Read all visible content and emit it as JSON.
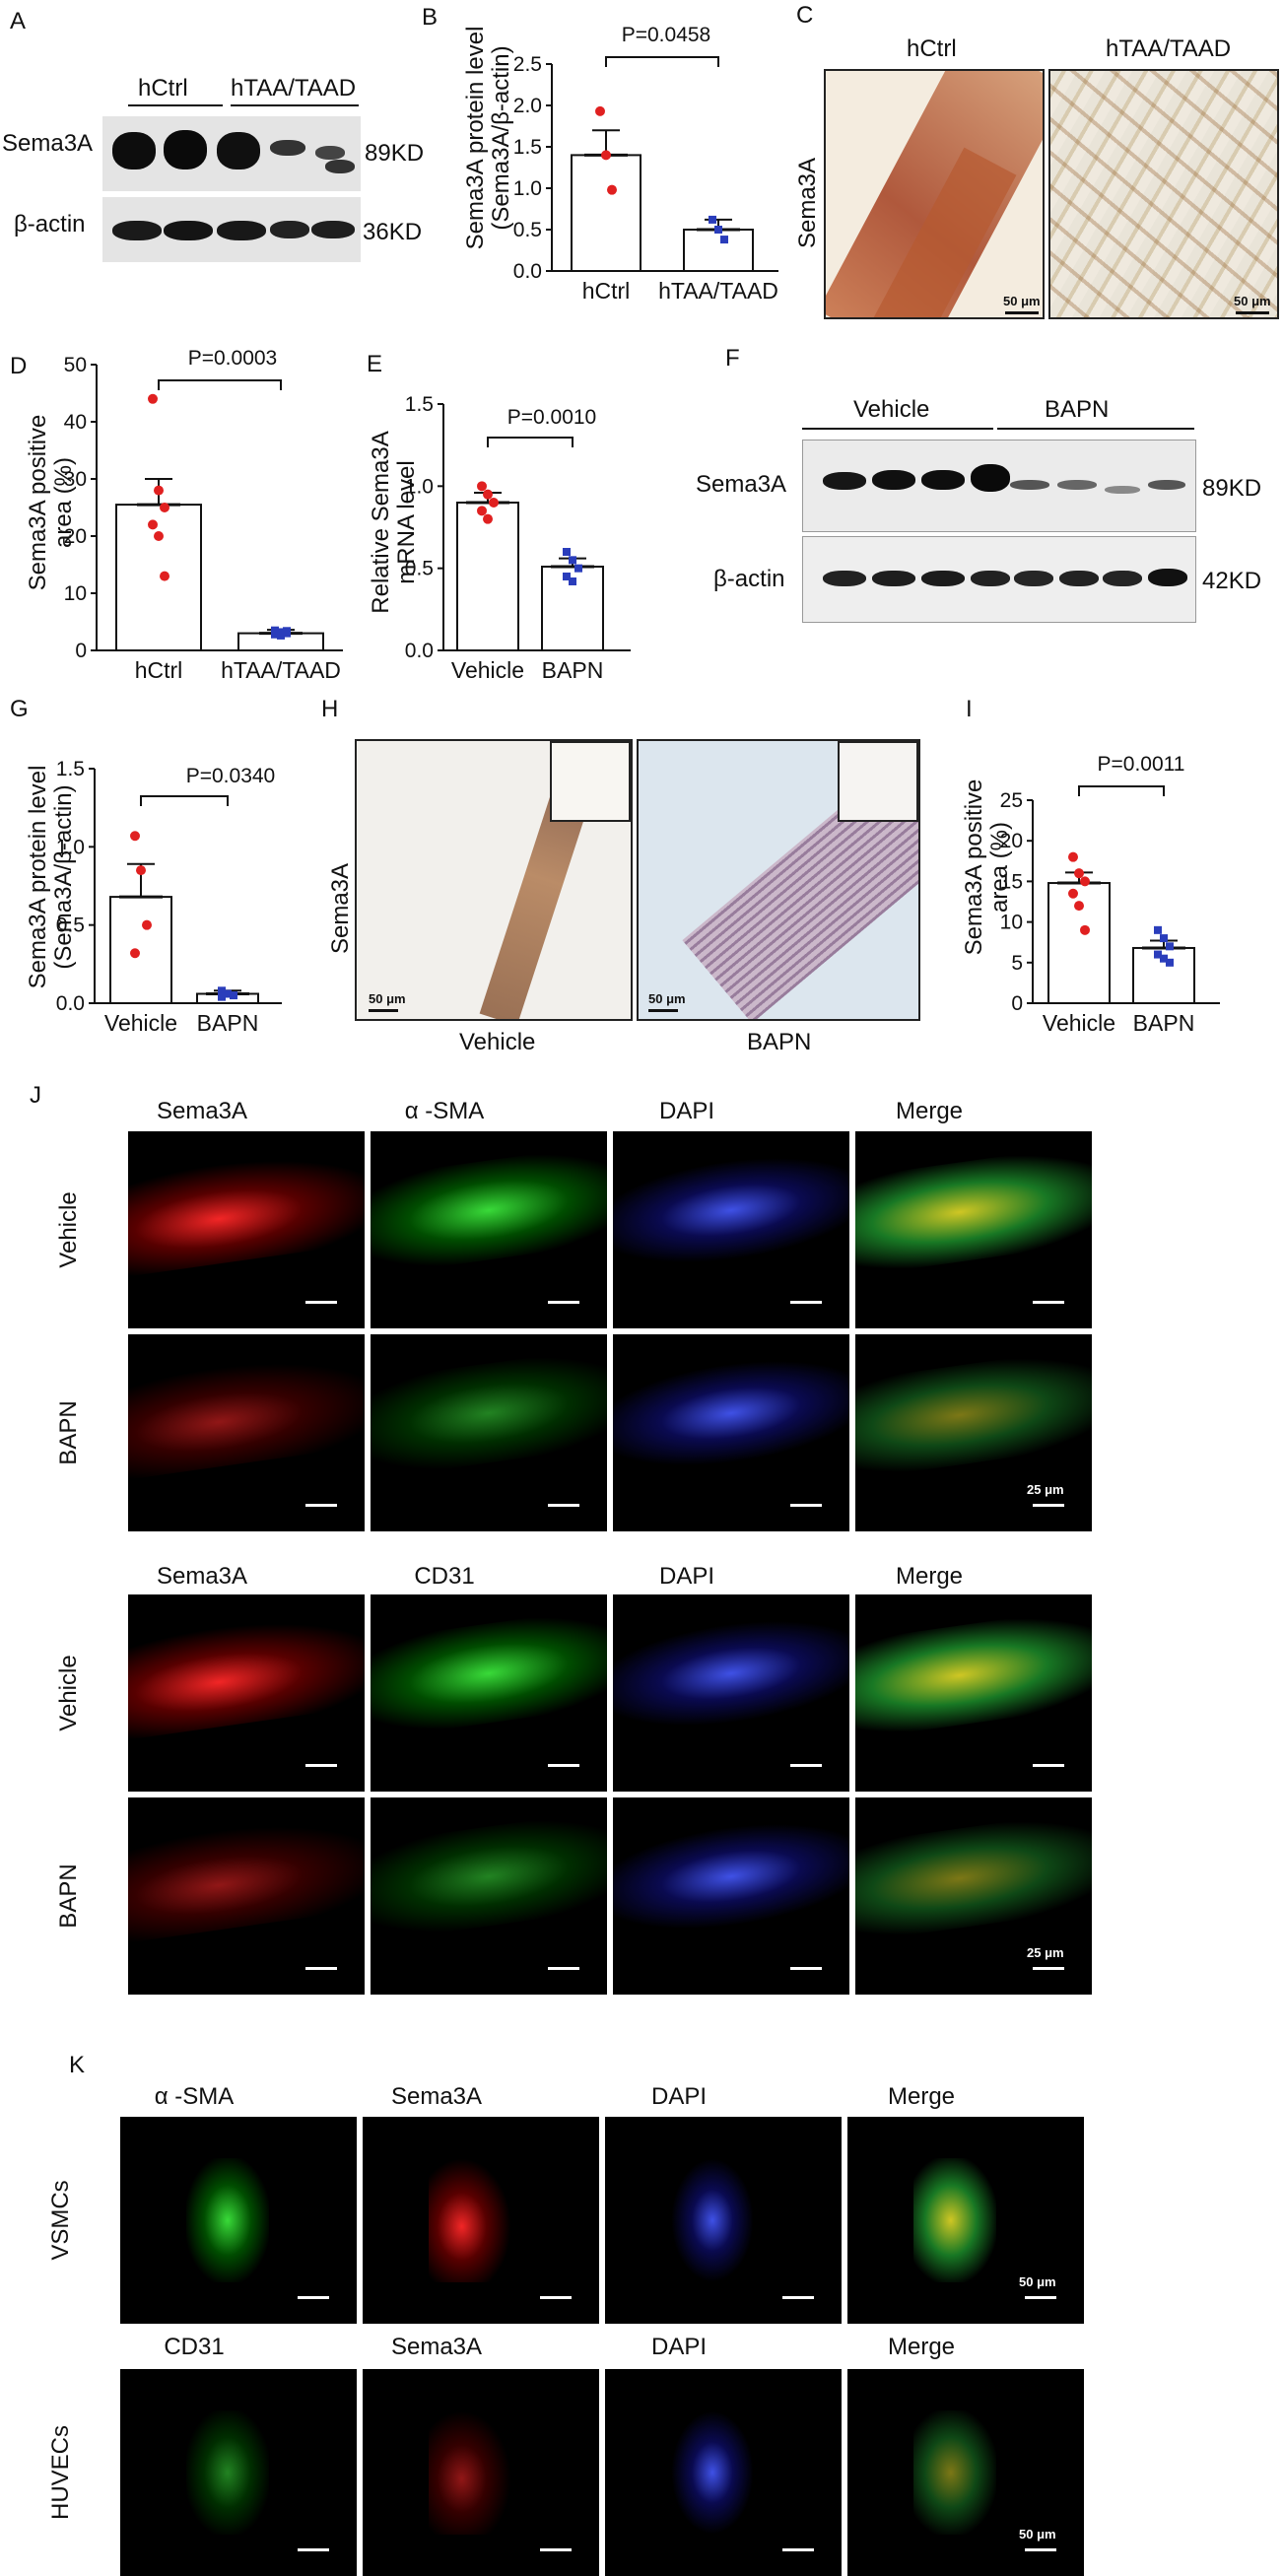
{
  "panels": {
    "A": {
      "letter": "A",
      "group_ctrl": "hCtrl",
      "group_taa": "hTAA/TAAD",
      "row1": "Sema3A",
      "row2": "β-actin",
      "size1": "89KD",
      "size2": "36KD"
    },
    "B": {
      "letter": "B",
      "ylabel1": "Sema3A protein level",
      "ylabel2": "(Sema3A/β-actin)",
      "pvalue": "P=0.0458",
      "yticks": [
        "0.0",
        "0.5",
        "1.0",
        "1.5",
        "2.0",
        "2.5"
      ]
    },
    "C": {
      "letter": "C",
      "title1": "hCtrl",
      "title2": "hTAA/TAAD",
      "rowlabel": "Sema3A",
      "scale": "50 μm"
    },
    "D": {
      "letter": "D",
      "ylabel1": "Sema3A  positive",
      "ylabel2": "area (%)",
      "pvalue": "P=0.0003",
      "yticks": [
        "0",
        "10",
        "20",
        "30",
        "40",
        "50"
      ]
    },
    "E": {
      "letter": "E",
      "ylabel1": "Relative Sema3A",
      "ylabel2": "mRNA level",
      "pvalue": "P=0.0010",
      "yticks": [
        "0.0",
        "0.5",
        "1.0",
        "1.5"
      ]
    },
    "F": {
      "letter": "F",
      "group_vehicle": "Vehicle",
      "group_bapn": "BAPN",
      "row1": "Sema3A",
      "row2": "β-actin",
      "size1": "89KD",
      "size2": "42KD"
    },
    "G": {
      "letter": "G",
      "ylabel1": "Sema3A protein level",
      "ylabel2": "(Sema3A/β-actin)",
      "pvalue": "P=0.0340",
      "yticks": [
        "0.0",
        "0.5",
        "1.0",
        "1.5"
      ]
    },
    "H": {
      "letter": "H",
      "rowlabel": "Sema3A",
      "cap1": "Vehicle",
      "cap2": "BAPN",
      "scale": "50 μm"
    },
    "I": {
      "letter": "I",
      "ylabel1": "Sema3A  positive",
      "ylabel2": "area (%)",
      "pvalue": "P=0.0011",
      "yticks": [
        "0",
        "5",
        "10",
        "15",
        "20",
        "25"
      ]
    },
    "J": {
      "letter": "J",
      "top_titles": [
        "Sema3A",
        "α -SMA",
        "DAPI",
        "Merge"
      ],
      "bottom_titles": [
        "Sema3A",
        "CD31",
        "DAPI",
        "Merge"
      ],
      "row_vehicle": "Vehicle",
      "row_bapn": "BAPN",
      "scale": "25 μm"
    },
    "K": {
      "letter": "K",
      "top_titles": [
        "α -SMA",
        "Sema3A",
        "DAPI",
        "Merge"
      ],
      "bottom_titles": [
        "CD31",
        "Sema3A",
        "DAPI",
        "Merge"
      ],
      "row_vsmc": "VSMCs",
      "row_huvec": "HUVECs",
      "scale": "50 μm"
    }
  },
  "chart_data": [
    {
      "id": "B",
      "type": "bar",
      "categories": [
        "hCtrl",
        "hTAA/TAAD"
      ],
      "values": [
        1.4,
        0.5
      ],
      "sem": [
        0.3,
        0.12
      ],
      "points": [
        [
          1.93,
          1.4,
          0.98
        ],
        [
          0.62,
          0.5,
          0.38
        ]
      ],
      "ylim": [
        0,
        2.5
      ],
      "point_colors": [
        "#e02020",
        "#2a3dbb"
      ]
    },
    {
      "id": "D",
      "type": "bar",
      "categories": [
        "hCtrl",
        "hTAA/TAAD"
      ],
      "values": [
        25.5,
        3.0
      ],
      "sem": [
        4.5,
        0.6
      ],
      "points": [
        [
          44,
          28,
          25,
          22,
          20,
          13
        ],
        [
          3.5,
          3.2,
          3.0,
          2.8,
          2.6,
          3.4
        ]
      ],
      "ylim": [
        0,
        50
      ],
      "point_colors": [
        "#e02020",
        "#2a3dbb"
      ]
    },
    {
      "id": "E",
      "type": "bar",
      "categories": [
        "Vehicle",
        "BAPN"
      ],
      "values": [
        0.9,
        0.51
      ],
      "sem": [
        0.06,
        0.05
      ],
      "points": [
        [
          1.0,
          0.95,
          0.9,
          0.85,
          0.8
        ],
        [
          0.6,
          0.55,
          0.5,
          0.45,
          0.42
        ]
      ],
      "ylim": [
        0,
        1.5
      ],
      "point_colors": [
        "#e02020",
        "#2a3dbb"
      ]
    },
    {
      "id": "G",
      "type": "bar",
      "categories": [
        "Vehicle",
        "BAPN"
      ],
      "values": [
        0.68,
        0.06
      ],
      "sem": [
        0.21,
        0.02
      ],
      "points": [
        [
          1.07,
          0.85,
          0.5,
          0.32
        ],
        [
          0.08,
          0.06,
          0.05,
          0.04
        ]
      ],
      "ylim": [
        0,
        1.5
      ],
      "point_colors": [
        "#e02020",
        "#2a3dbb"
      ]
    },
    {
      "id": "I",
      "type": "bar",
      "categories": [
        "Vehicle",
        "BAPN"
      ],
      "values": [
        14.8,
        6.8
      ],
      "sem": [
        1.3,
        0.9
      ],
      "points": [
        [
          18,
          16,
          15,
          13.5,
          12,
          9
        ],
        [
          9,
          8,
          7,
          6,
          5.5,
          5
        ]
      ],
      "ylim": [
        0,
        25
      ],
      "point_colors": [
        "#e02020",
        "#2a3dbb"
      ]
    }
  ]
}
